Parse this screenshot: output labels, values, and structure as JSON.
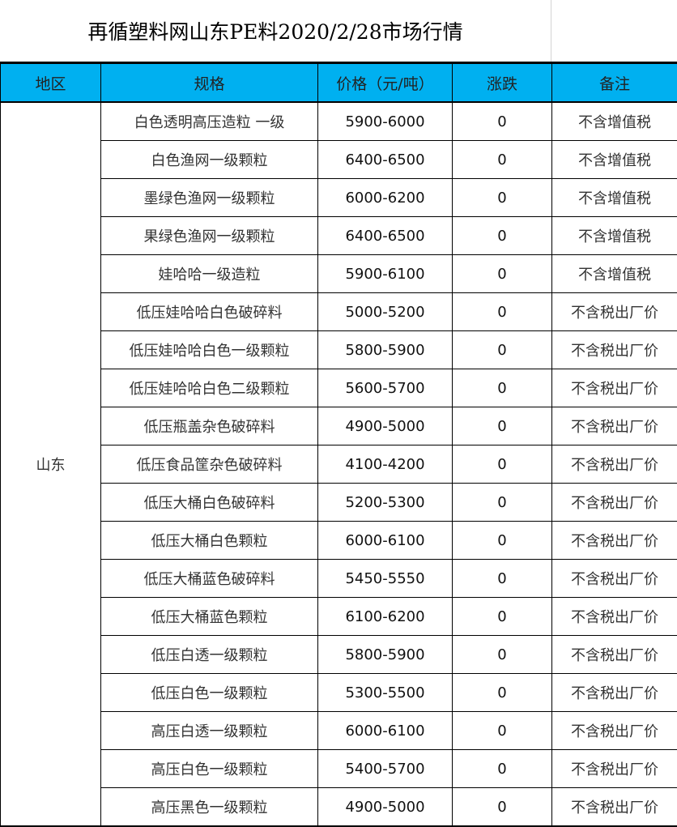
{
  "title": "再循塑料网山东PE料2020/2/28市场行情",
  "header_color": "#00b0f0",
  "columns": [
    "地区",
    "规格",
    "价格（元/吨）",
    "涨跌",
    "备注"
  ],
  "region": "山东",
  "rows": [
    {
      "spec": "白色透明高压造粒 一级",
      "price": "5900-6000",
      "change": "0",
      "note": "不含增值税"
    },
    {
      "spec": "白色渔网一级颗粒",
      "price": "6400-6500",
      "change": "0",
      "note": "不含增值税"
    },
    {
      "spec": "墨绿色渔网一级颗粒",
      "price": "6000-6200",
      "change": "0",
      "note": "不含增值税"
    },
    {
      "spec": "果绿色渔网一级颗粒",
      "price": "6400-6500",
      "change": "0",
      "note": "不含增值税"
    },
    {
      "spec": "娃哈哈一级造粒",
      "price": "5900-6100",
      "change": "0",
      "note": "不含增值税"
    },
    {
      "spec": "低压娃哈哈白色破碎料",
      "price": "5000-5200",
      "change": "0",
      "note": "不含税出厂价"
    },
    {
      "spec": "低压娃哈哈白色一级颗粒",
      "price": "5800-5900",
      "change": "0",
      "note": "不含税出厂价"
    },
    {
      "spec": "低压娃哈哈白色二级颗粒",
      "price": "5600-5700",
      "change": "0",
      "note": "不含税出厂价"
    },
    {
      "spec": "低压瓶盖杂色破碎料",
      "price": "4900-5000",
      "change": "0",
      "note": "不含税出厂价"
    },
    {
      "spec": "低压食品筐杂色破碎料",
      "price": "4100-4200",
      "change": "0",
      "note": "不含税出厂价"
    },
    {
      "spec": "低压大桶白色破碎料",
      "price": "5200-5300",
      "change": "0",
      "note": "不含税出厂价"
    },
    {
      "spec": "低压大桶白色颗粒",
      "price": "6000-6100",
      "change": "0",
      "note": "不含税出厂价"
    },
    {
      "spec": "低压大桶蓝色破碎料",
      "price": "5450-5550",
      "change": "0",
      "note": "不含税出厂价"
    },
    {
      "spec": "低压大桶蓝色颗粒",
      "price": "6100-6200",
      "change": "0",
      "note": "不含税出厂价"
    },
    {
      "spec": "低压白透一级颗粒",
      "price": "5800-5900",
      "change": "0",
      "note": "不含税出厂价"
    },
    {
      "spec": "低压白色一级颗粒",
      "price": "5300-5500",
      "change": "0",
      "note": "不含税出厂价"
    },
    {
      "spec": "高压白透一级颗粒",
      "price": "6000-6100",
      "change": "0",
      "note": "不含税出厂价"
    },
    {
      "spec": "高压白色一级颗粒",
      "price": "5400-5700",
      "change": "0",
      "note": "不含税出厂价"
    },
    {
      "spec": "高压黑色一级颗粒",
      "price": "4900-5000",
      "change": "0",
      "note": "不含税出厂价"
    }
  ]
}
